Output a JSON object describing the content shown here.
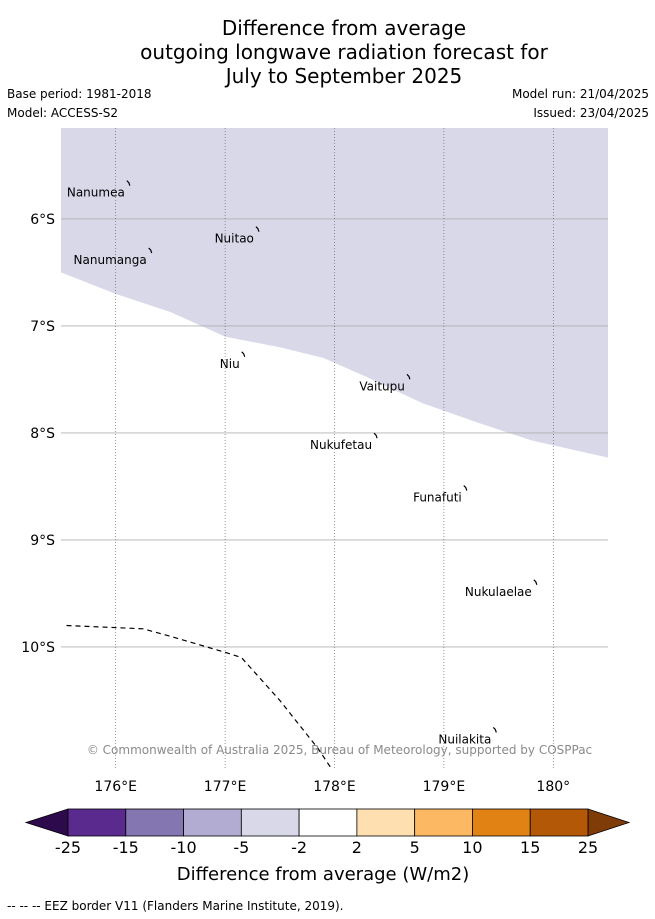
{
  "title": {
    "line1": "Difference from average",
    "line2": "outgoing longwave radiation forecast for",
    "line3": "July to September 2025"
  },
  "meta": {
    "base_period": "Base period: 1981-2018",
    "model": "Model: ACCESS-S2",
    "model_run": "Model run: 21/04/2025",
    "issued": "Issued: 23/04/2025"
  },
  "map": {
    "lon_range": [
      175.5,
      180.5
    ],
    "lat_range": [
      -5.15,
      -11.15
    ],
    "lon_ticks": [
      176,
      177,
      178,
      179,
      180
    ],
    "lon_tick_labels": [
      "176°E",
      "177°E",
      "178°E",
      "179°E",
      "180°"
    ],
    "lat_ticks": [
      -6,
      -7,
      -8,
      -9,
      -10
    ],
    "lat_tick_labels": [
      "6°S",
      "7°S",
      "8°S",
      "9°S",
      "10°S"
    ],
    "shaded_color": "#d8d8e9",
    "shaded_category": "-5 to -2",
    "shade_boundary": [
      [
        175.5,
        -6.5
      ],
      [
        176.0,
        -6.7
      ],
      [
        176.5,
        -6.87
      ],
      [
        177.0,
        -7.1
      ],
      [
        177.5,
        -7.2
      ],
      [
        177.9,
        -7.3
      ],
      [
        178.3,
        -7.48
      ],
      [
        178.8,
        -7.72
      ],
      [
        179.3,
        -7.9
      ],
      [
        179.8,
        -8.07
      ],
      [
        180.5,
        -8.23
      ]
    ],
    "eez_border": [
      [
        175.55,
        -9.8
      ],
      [
        176.25,
        -9.83
      ],
      [
        176.5,
        -9.9
      ],
      [
        177.0,
        -10.05
      ],
      [
        177.15,
        -10.1
      ],
      [
        177.5,
        -10.5
      ],
      [
        177.85,
        -10.95
      ],
      [
        177.98,
        -11.15
      ]
    ],
    "islands": [
      {
        "name": "Nanumea",
        "lon": 176.12,
        "lat": -5.67
      },
      {
        "name": "Nuitao",
        "lon": 177.3,
        "lat": -6.1
      },
      {
        "name": "Nanumanga",
        "lon": 176.32,
        "lat": -6.3
      },
      {
        "name": "Niu",
        "lon": 177.17,
        "lat": -7.27
      },
      {
        "name": "Vaitupu",
        "lon": 178.68,
        "lat": -7.48
      },
      {
        "name": "Nukufetau",
        "lon": 178.38,
        "lat": -8.03
      },
      {
        "name": "Funafuti",
        "lon": 179.2,
        "lat": -8.52
      },
      {
        "name": "Nukulaelae",
        "lon": 179.84,
        "lat": -9.4
      },
      {
        "name": "Nuilakita",
        "lon": 179.47,
        "lat": -10.78
      }
    ],
    "copyright": "© Commonwealth of Australia 2025, Bureau of Meteorology, supported by COSPPac"
  },
  "colorbar": {
    "boundaries": [
      "-25",
      "-15",
      "-10",
      "-5",
      "-2",
      "2",
      "5",
      "10",
      "15",
      "25"
    ],
    "colors": [
      "#5a2a8e",
      "#8476b0",
      "#b2acd3",
      "#d8d8e9",
      "#ffffff",
      "#fedfb0",
      "#fdb863",
      "#e08214",
      "#b35806"
    ],
    "extend_low_color": "#2d0a4b",
    "extend_high_color": "#7f3b08",
    "label": "Difference from average (W/m2)"
  },
  "footer": "-- -- -- EEZ border V11 (Flanders Marine Institute, 2019)."
}
